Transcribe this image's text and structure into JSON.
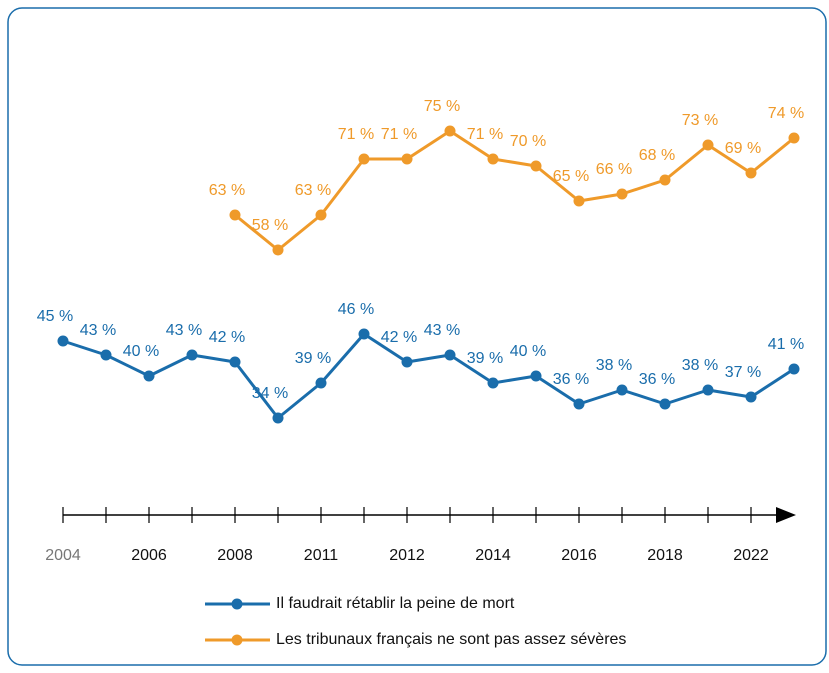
{
  "chart_data": {
    "type": "line",
    "categories": [
      "2004",
      null,
      "2006",
      null,
      "2008",
      null,
      "2011",
      null,
      "2012",
      null,
      "2014",
      null,
      "2016",
      null,
      "2018",
      null,
      "2022",
      null
    ],
    "series": [
      {
        "name": "Il faudrait rétablir la peine de mort",
        "color": "#1a6dab",
        "values": [
          45,
          43,
          40,
          43,
          42,
          34,
          39,
          46,
          42,
          43,
          39,
          40,
          36,
          38,
          36,
          38,
          37,
          41
        ],
        "value_labels": [
          "45 %",
          "43 %",
          "40 %",
          "43 %",
          "42 %",
          "34 %",
          "39 %",
          "46 %",
          "42 %",
          "43 %",
          "39 %",
          "40 %",
          "36 %",
          "38 %",
          "36 %",
          "38 %",
          "37 %",
          "41 %"
        ]
      },
      {
        "name": "Les tribunaux français ne sont pas assez sévères",
        "color": "#ef9a2a",
        "values": [
          null,
          null,
          null,
          null,
          63,
          58,
          63,
          71,
          71,
          75,
          71,
          70,
          65,
          66,
          68,
          73,
          69,
          74
        ],
        "value_labels": [
          null,
          null,
          null,
          null,
          "63 %",
          "58 %",
          "63 %",
          "71 %",
          "71 %",
          "75 %",
          "71 %",
          "70 %",
          "65 %",
          "66 %",
          "68 %",
          "73 %",
          "69 %",
          "74 %"
        ]
      }
    ],
    "ylim": [
      20,
      80
    ]
  }
}
